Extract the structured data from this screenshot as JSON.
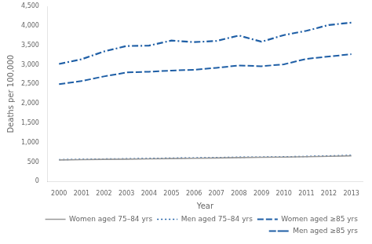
{
  "chart_data": {
    "type": "line",
    "x": [
      2000,
      2001,
      2002,
      2003,
      2004,
      2005,
      2006,
      2007,
      2008,
      2009,
      2010,
      2011,
      2012,
      2013
    ],
    "series": [
      {
        "name": "Women aged 75–84 yrs",
        "color": "#999999",
        "line_style": "solid",
        "values": [
          555,
          562,
          570,
          575,
          582,
          590,
          598,
          605,
          615,
          622,
          628,
          638,
          648,
          660
        ]
      },
      {
        "name": "Men aged 75–84 yrs",
        "color": "#1f5fa6",
        "line_style": "dotted",
        "values": [
          562,
          570,
          578,
          585,
          593,
          602,
          608,
          615,
          625,
          628,
          635,
          645,
          658,
          672
        ]
      },
      {
        "name": "Women aged ≥85 yrs",
        "color": "#1f5fa6",
        "line_style": "dashed",
        "values": [
          2500,
          2580,
          2700,
          2800,
          2820,
          2850,
          2870,
          2920,
          2980,
          2960,
          3010,
          3150,
          3210,
          3270
        ]
      },
      {
        "name": "Men aged ≥85 yrs",
        "color": "#1f5fa6",
        "line_style": "dashdot",
        "values": [
          3020,
          3140,
          3340,
          3480,
          3490,
          3620,
          3580,
          3610,
          3750,
          3590,
          3760,
          3870,
          4020,
          4080
        ]
      }
    ],
    "xlabel": "Year",
    "ylabel": "Deaths per 100,000",
    "xlim": [
      1999.5,
      2013.5
    ],
    "xticks": [
      2000,
      2001,
      2002,
      2003,
      2004,
      2005,
      2006,
      2007,
      2008,
      2009,
      2010,
      2011,
      2012,
      2013
    ],
    "ylim": [
      0,
      4500
    ],
    "yticks": [
      0,
      500,
      {
        "value": 1000,
        "label": "1,000"
      },
      {
        "value": 1500,
        "label": "1,500"
      },
      {
        "value": 2000,
        "label": "2,000"
      },
      {
        "value": 2500,
        "label": "2,500"
      },
      {
        "value": 3000,
        "label": "3,000"
      },
      {
        "value": 3500,
        "label": "3,500"
      },
      {
        "value": 4000,
        "label": "4,000"
      },
      {
        "value": 4500,
        "label": "4,500"
      }
    ],
    "grid": false,
    "legend": "lower right"
  }
}
